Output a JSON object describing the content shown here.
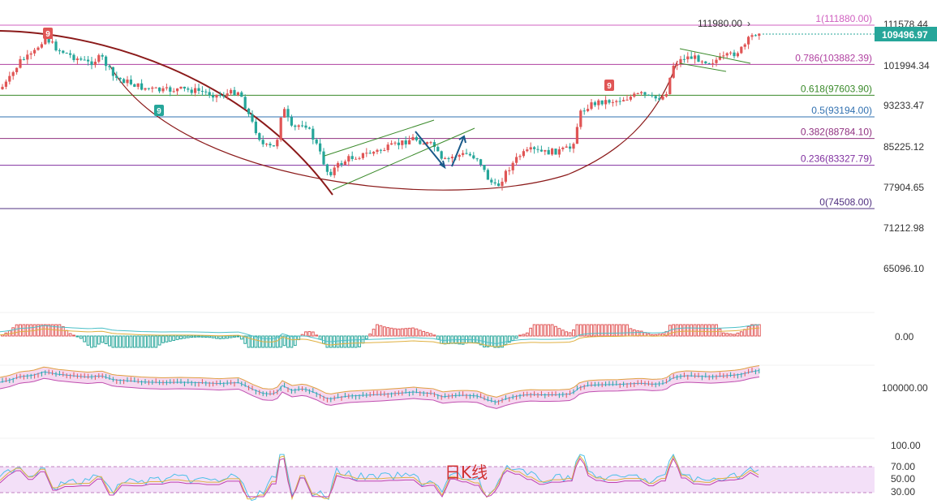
{
  "chart_data": {
    "type": "candlestick",
    "price_axis_ticks": [
      "111578.44",
      "101994.34",
      "93233.47",
      "85225.12",
      "77904.65",
      "71212.98",
      "65096.10"
    ],
    "current_price": {
      "value": 109496.97,
      "label": "109496.97",
      "color": "#26a69a"
    },
    "high_annotation": "111980.00",
    "fibonacci": [
      {
        "ratio": "1",
        "value": 111880.0,
        "label": "1(111880.00)",
        "color": "#d060c0"
      },
      {
        "ratio": "0.786",
        "value": 103882.39,
        "label": "0.786(103882.39)",
        "color": "#b040a0"
      },
      {
        "ratio": "0.618",
        "value": 97603.9,
        "label": "0.618(97603.90)",
        "color": "#3a8a2a"
      },
      {
        "ratio": "0.5",
        "value": 93194.0,
        "label": "0.5(93194.00)",
        "color": "#3070b0"
      },
      {
        "ratio": "0.382",
        "value": 88784.1,
        "label": "0.382(88784.10)",
        "color": "#903080"
      },
      {
        "ratio": "0.236",
        "value": 83327.79,
        "label": "0.236(83327.79)",
        "color": "#8030a0"
      },
      {
        "ratio": "0",
        "value": 74508.0,
        "label": "0(74508.00)",
        "color": "#503080"
      }
    ],
    "td_markers": [
      {
        "label": "9",
        "color": "#e05555"
      },
      {
        "label": "9",
        "color": "#26a69a"
      },
      {
        "label": "9",
        "color": "#e05555"
      }
    ],
    "macd_zero_label": "0.00",
    "volume_axis_label": "100000.00",
    "rsi_ticks": [
      "100.00",
      "70.00",
      "50.00",
      "30.00"
    ],
    "watermark": "日K线",
    "colors": {
      "up": "#e05555",
      "down": "#26a69a",
      "arc": "#8b1a1a"
    }
  }
}
